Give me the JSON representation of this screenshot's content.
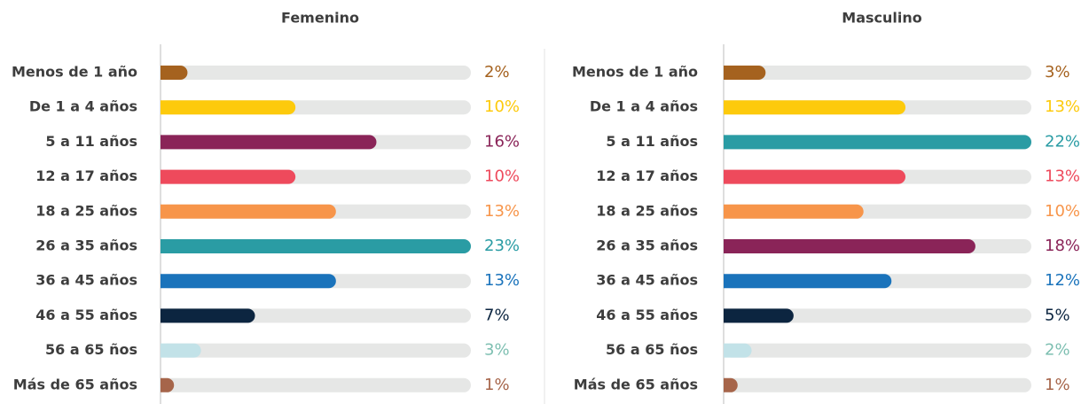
{
  "chart_data": [
    {
      "type": "bar",
      "title": "Femenino",
      "categories": [
        "Menos de 1 año",
        "De 1 a 4 años",
        "5 a 11 años",
        "12 a 17 años",
        "18 a 25 años",
        "26 a 35 años",
        "36 a 45 años",
        "46 a 55 años",
        "56 a 65 ños",
        "Más de 65 años"
      ],
      "values": [
        2,
        10,
        16,
        10,
        13,
        23,
        13,
        7,
        3,
        1
      ],
      "value_labels": [
        "2%",
        "10%",
        "16%",
        "10%",
        "13%",
        "23%",
        "13%",
        "7%",
        "3%",
        "1%"
      ],
      "colors": [
        "#a5621f",
        "#fdca0c",
        "#8a2458",
        "#ee4a5c",
        "#f7954a",
        "#2a9ca4",
        "#1a73bb",
        "#0c2540",
        "#c2e2e8",
        "#a6654a"
      ],
      "xlim": [
        0,
        23
      ]
    },
    {
      "type": "bar",
      "title": "Masculino",
      "categories": [
        "Menos de 1 año",
        "De 1 a 4 años",
        "5 a 11 años",
        "12 a 17 años",
        "18 a 25 años",
        "26 a 35 años",
        "36 a 45 años",
        "46 a 55 años",
        "56 a 65 ños",
        "Más de 65 años"
      ],
      "values": [
        3,
        13,
        22,
        13,
        10,
        18,
        12,
        5,
        2,
        1
      ],
      "value_labels": [
        "3%",
        "13%",
        "22%",
        "13%",
        "10%",
        "18%",
        "12%",
        "5%",
        "2%",
        "1%"
      ],
      "colors": [
        "#a5621f",
        "#fdca0c",
        "#2a9ca4",
        "#ee4a5c",
        "#f7954a",
        "#8a2458",
        "#1a73bb",
        "#0c2540",
        "#c2e2e8",
        "#a6654a"
      ],
      "xlim": [
        0,
        22
      ]
    }
  ]
}
